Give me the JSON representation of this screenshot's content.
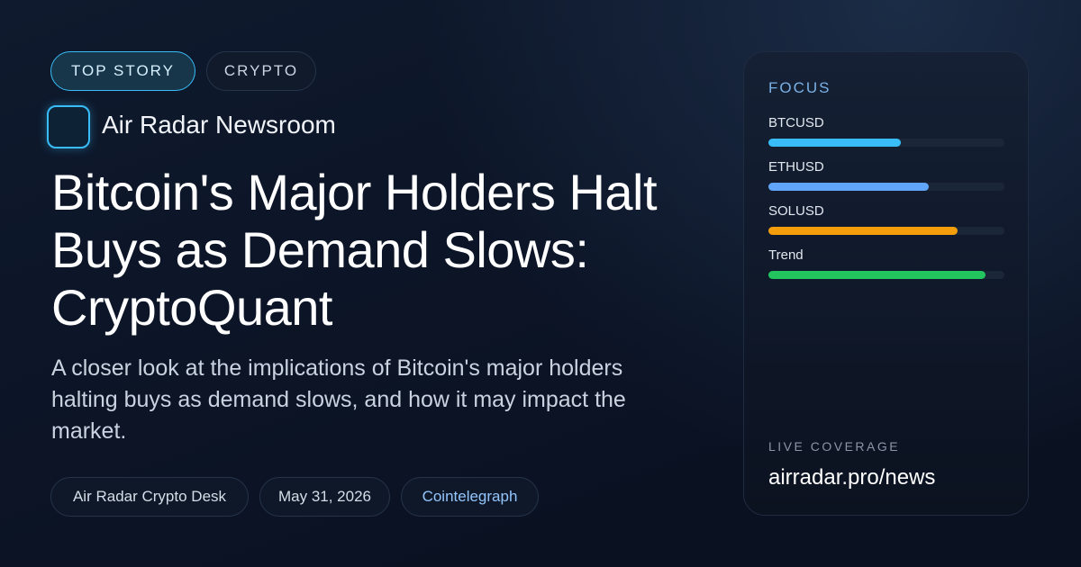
{
  "tags": [
    "TOP STORY",
    "CRYPTO"
  ],
  "brand": "Air Radar Newsroom",
  "headline": "Bitcoin's Major Holders Halt Buys as Demand Slows: CryptoQuant",
  "summary": "A closer look at the implications of Bitcoin's major holders halting buys as demand slows, and how it may impact the market.",
  "meta": [
    "Air Radar Crypto Desk",
    "May 31, 2026",
    "Cointelegraph"
  ],
  "focus": {
    "title": "FOCUS",
    "items": [
      {
        "label": "BTCUSD",
        "value": 56,
        "color": "#38bdf8"
      },
      {
        "label": "ETHUSD",
        "value": 68,
        "color": "#60a5fa"
      },
      {
        "label": "SOLUSD",
        "value": 80,
        "color": "#f59e0b"
      },
      {
        "label": "Trend",
        "value": 92,
        "color": "#22c55e"
      }
    ]
  },
  "footer": {
    "label": "LIVE COVERAGE",
    "url": "airradar.pro/news"
  }
}
